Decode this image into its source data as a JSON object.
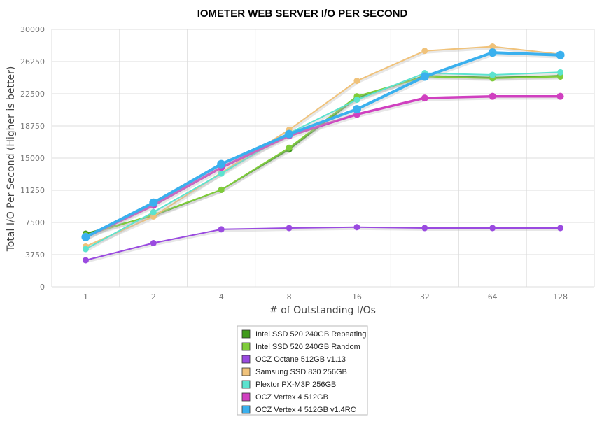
{
  "chart_data": {
    "type": "line",
    "title": "IOMETER WEB SERVER I/O PER SECOND",
    "xlabel": "# of Outstanding I/Os",
    "ylabel": "Total I/O Per Second (Higher is better)",
    "categories": [
      "1",
      "2",
      "4",
      "8",
      "16",
      "32",
      "64",
      "128"
    ],
    "yticks": [
      0,
      3750,
      7500,
      11250,
      15000,
      18750,
      22500,
      26250,
      30000
    ],
    "ylim": [
      0,
      30000
    ],
    "grid": true,
    "legend_position": "bottom-center",
    "series": [
      {
        "name": "Intel SSD 520 240GB Repeating",
        "color": "#3f9a1b",
        "values": [
          6200,
          8300,
          11300,
          16000,
          22000,
          24600,
          24400,
          24600
        ]
      },
      {
        "name": "Intel SSD 520 240GB Random",
        "color": "#7fcc3a",
        "values": [
          6000,
          8400,
          11300,
          16200,
          22200,
          24500,
          24300,
          24500
        ]
      },
      {
        "name": "OCZ Octane 512GB v1.13",
        "color": "#9a4ae0",
        "values": [
          3100,
          5100,
          6700,
          6850,
          6950,
          6850,
          6850,
          6850
        ]
      },
      {
        "name": "Samsung SSD 830 256GB",
        "color": "#f0c27a",
        "values": [
          4700,
          8200,
          13300,
          18300,
          24000,
          27500,
          28000,
          27100
        ]
      },
      {
        "name": "Plextor PX-M3P 256GB",
        "color": "#5ce3cf",
        "values": [
          4400,
          8700,
          13200,
          17900,
          21800,
          24900,
          24700,
          25000
        ]
      },
      {
        "name": "OCZ Vertex 4 512GB",
        "color": "#d040c0",
        "values": [
          5800,
          9500,
          13900,
          17600,
          20100,
          22000,
          22200,
          22200
        ]
      },
      {
        "name": "OCZ Vertex 4 512GB v1.4RC",
        "color": "#3ab0ee",
        "values": [
          5800,
          9800,
          14300,
          17800,
          20700,
          24500,
          27300,
          27000
        ]
      }
    ]
  }
}
